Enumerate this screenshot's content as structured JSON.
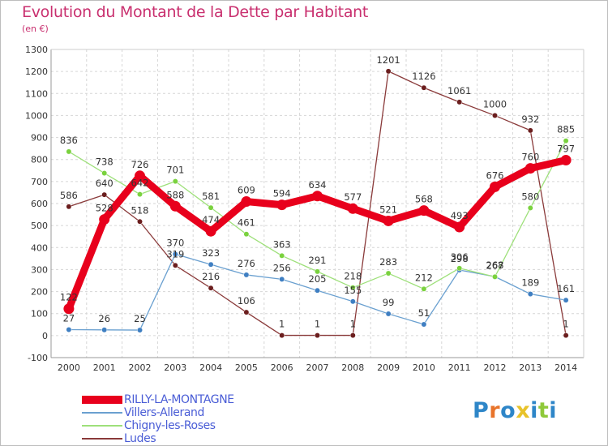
{
  "title": "Evolution du Montant de la Dette par Habitant",
  "unit": "(en €)",
  "brand": {
    "text": [
      "P",
      "r",
      "o",
      "x",
      "i",
      "t",
      "i"
    ],
    "colors": [
      "#2e86c8",
      "#e8742b",
      "#2e86c8",
      "#e8c32b",
      "#2e86c8",
      "#8fc93a",
      "#2e86c8"
    ]
  },
  "chart_data": {
    "type": "line",
    "x": [
      "2000",
      "2001",
      "2002",
      "2003",
      "2004",
      "2005",
      "2006",
      "2007",
      "2008",
      "2009",
      "2010",
      "2011",
      "2012",
      "2013",
      "2014"
    ],
    "ylim": [
      -100,
      1300
    ],
    "yticks": [
      "-100",
      "0",
      "100",
      "200",
      "300",
      "400",
      "500",
      "600",
      "700",
      "800",
      "900",
      "1000",
      "1100",
      "1200",
      "1300"
    ],
    "ytick_values": [
      -100,
      0,
      100,
      200,
      300,
      400,
      500,
      600,
      700,
      800,
      900,
      1000,
      1100,
      1200,
      1300
    ],
    "grid": true,
    "legend_position": "bottom-left",
    "series": [
      {
        "name": "RILLY-LA-MONTAGNE",
        "color": "#e8001c",
        "marker": "#e8001c",
        "thick": true,
        "values": [
          122,
          528,
          726,
          588,
          474,
          609,
          594,
          634,
          577,
          521,
          568,
          493,
          676,
          760,
          797
        ],
        "labels": [
          "122",
          "528",
          "726",
          "588",
          "474",
          "609",
          "594",
          "634",
          "577",
          "521",
          "568",
          "493",
          "676",
          "760",
          "797"
        ]
      },
      {
        "name": "Villers-Allerand",
        "color": "#6aa0d0",
        "marker": "#3f7fc2",
        "thick": false,
        "values": [
          27,
          26,
          25,
          370,
          323,
          276,
          256,
          205,
          155,
          99,
          51,
          298,
          268,
          189,
          161
        ],
        "labels": [
          "27",
          "26",
          "25",
          "370",
          "323",
          "276",
          "256",
          "205",
          "155",
          "99",
          "51",
          "298",
          "268",
          "189",
          "161"
        ]
      },
      {
        "name": "Chigny-les-Roses",
        "color": "#9ee07a",
        "marker": "#7ad23e",
        "thick": false,
        "values": [
          836,
          738,
          642,
          701,
          581,
          461,
          363,
          291,
          218,
          283,
          212,
          306,
          267,
          580,
          885
        ],
        "labels": [
          "836",
          "738",
          "642",
          "701",
          "581",
          "461",
          "363",
          "291",
          "218",
          "283",
          "212",
          "306",
          "267",
          "580",
          "885"
        ]
      },
      {
        "name": "Ludes",
        "color": "#8a3a3a",
        "marker": "#6b1e1e",
        "thick": false,
        "values": [
          586,
          640,
          518,
          319,
          216,
          106,
          1,
          1,
          1,
          1201,
          1126,
          1061,
          1000,
          932,
          1
        ],
        "labels": [
          "586",
          "640",
          "518",
          "319",
          "216",
          "106",
          "1",
          "1",
          "1",
          "1201",
          "1126",
          "1061",
          "1000",
          "932",
          "1"
        ]
      }
    ]
  }
}
